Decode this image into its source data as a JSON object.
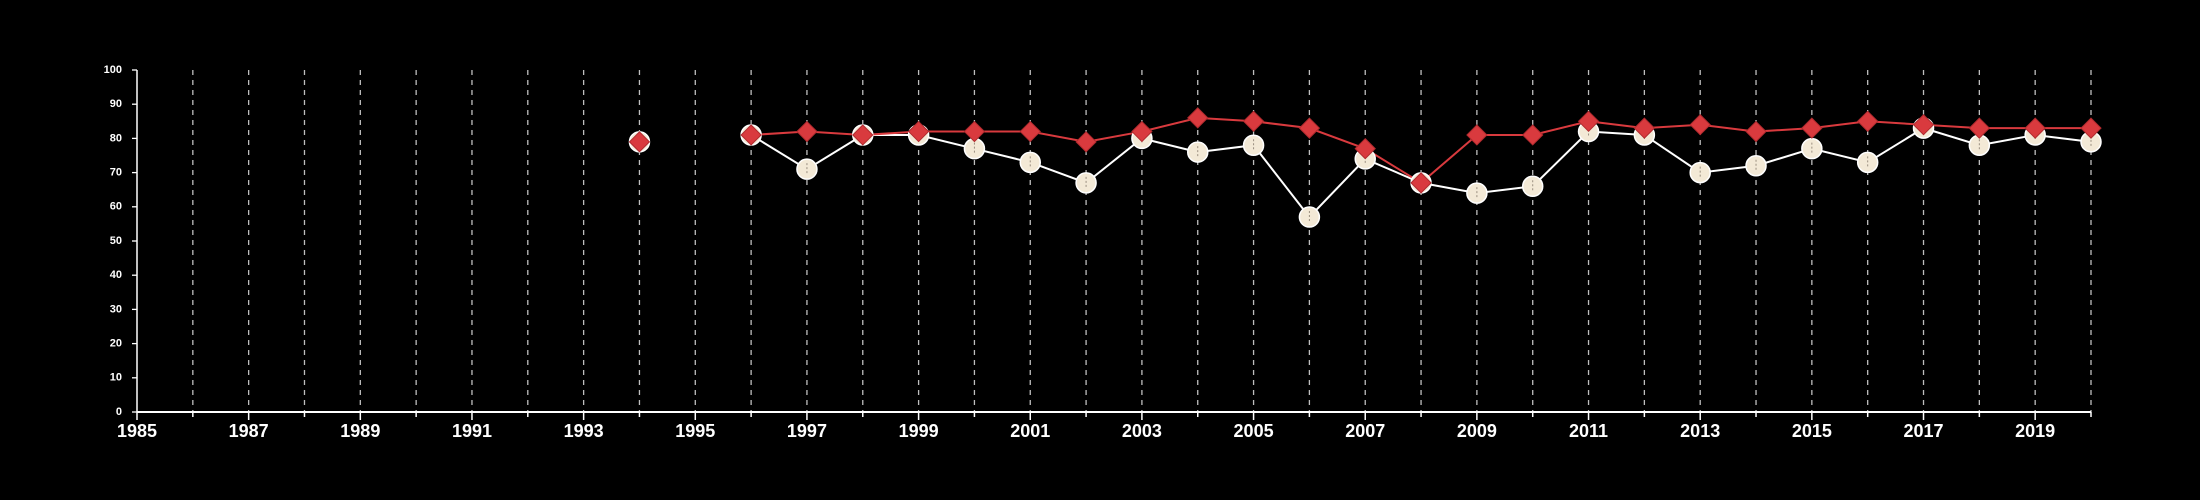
{
  "chart_data": {
    "type": "line",
    "xlim": [
      1985,
      2020
    ],
    "ylim": [
      0,
      100
    ],
    "x_ticks": [
      "1985",
      "1987",
      "1989",
      "1991",
      "1993",
      "1995",
      "1997",
      "1999",
      "2001",
      "2003",
      "2005",
      "2007",
      "2009",
      "2011",
      "2013",
      "2015",
      "2017",
      "2019"
    ],
    "y_ticks": [
      "0",
      "10",
      "20",
      "30",
      "40",
      "50",
      "60",
      "70",
      "80",
      "90",
      "100"
    ],
    "grid": "vertical dashed lines at each year",
    "legend": "none",
    "series": [
      {
        "marker": "circle",
        "color": "#f3e9d6",
        "points": [
          [
            1994,
            79
          ],
          [
            1996,
            81
          ],
          [
            1997,
            71
          ],
          [
            1998,
            81
          ],
          [
            1999,
            81
          ],
          [
            2000,
            77
          ],
          [
            2001,
            73
          ],
          [
            2002,
            67
          ],
          [
            2003,
            80
          ],
          [
            2004,
            76
          ],
          [
            2005,
            78
          ],
          [
            2006,
            57
          ],
          [
            2007,
            74
          ],
          [
            2008,
            67
          ],
          [
            2009,
            64
          ],
          [
            2010,
            66
          ],
          [
            2011,
            82
          ],
          [
            2012,
            81
          ],
          [
            2013,
            70
          ],
          [
            2014,
            72
          ],
          [
            2015,
            77
          ],
          [
            2016,
            73
          ],
          [
            2017,
            83
          ],
          [
            2018,
            78
          ],
          [
            2019,
            81
          ],
          [
            2020,
            79
          ]
        ]
      },
      {
        "marker": "diamond",
        "color": "#d93a3e",
        "points": [
          [
            1994,
            79
          ],
          [
            1996,
            81
          ],
          [
            1997,
            82
          ],
          [
            1998,
            81
          ],
          [
            1999,
            82
          ],
          [
            2000,
            82
          ],
          [
            2001,
            82
          ],
          [
            2002,
            79
          ],
          [
            2003,
            82
          ],
          [
            2004,
            86
          ],
          [
            2005,
            85
          ],
          [
            2006,
            83
          ],
          [
            2007,
            77
          ],
          [
            2008,
            67
          ],
          [
            2009,
            81
          ],
          [
            2010,
            81
          ],
          [
            2011,
            85
          ],
          [
            2012,
            83
          ],
          [
            2013,
            84
          ],
          [
            2014,
            82
          ],
          [
            2015,
            83
          ],
          [
            2016,
            85
          ],
          [
            2017,
            84
          ],
          [
            2018,
            83
          ],
          [
            2019,
            83
          ],
          [
            2020,
            83
          ]
        ]
      }
    ]
  }
}
